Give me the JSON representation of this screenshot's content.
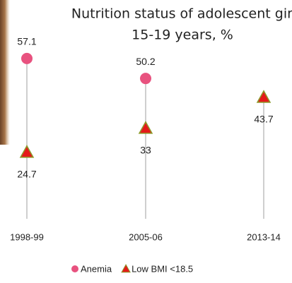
{
  "chart_data": {
    "type": "dot",
    "title": "Nutrition status of adolescent girls",
    "subtitle": "15-19 years, %",
    "categories": [
      "1998-99",
      "2005-06",
      "2013-14"
    ],
    "series": [
      {
        "name": "Anemia",
        "color": "#e8527f",
        "marker": "circle",
        "values": [
          57.1,
          50.2,
          null
        ]
      },
      {
        "name": "Low BMI <18.5",
        "color": "#e41a1a",
        "marker": "triangle",
        "values": [
          24.7,
          33,
          43.7
        ]
      }
    ],
    "ylim": [
      0,
      70
    ]
  }
}
